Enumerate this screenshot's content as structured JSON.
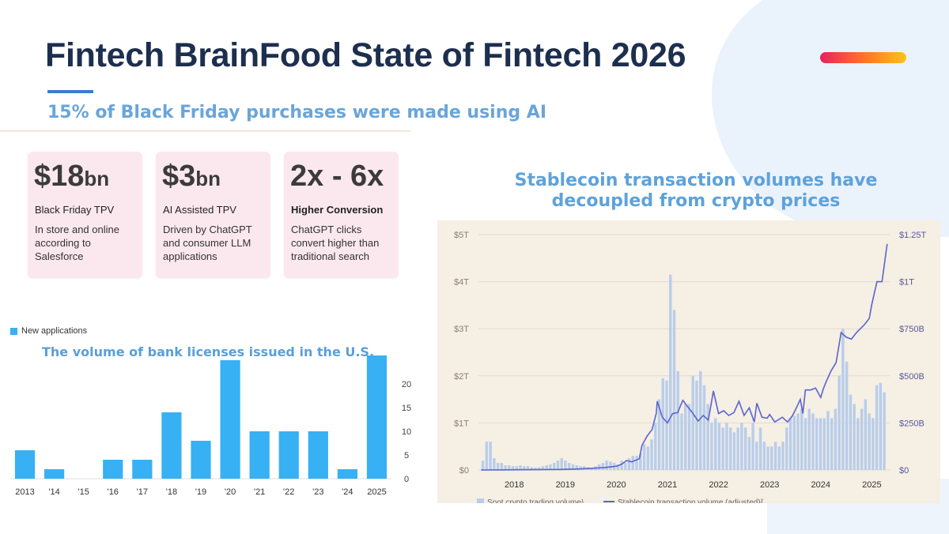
{
  "header": {
    "title": "Fintech BrainFood State of Fintech 2026",
    "subtitle": "15% of Black Friday purchases were made using AI"
  },
  "colors": {
    "title": "#1d2f4e",
    "accent_gradient": [
      "#e8215e",
      "#ff6a2b",
      "#ffc21a"
    ],
    "card_bg": "#fbe8ee",
    "bar_blue": "#37b0f4",
    "spot_bar": "#b9cdeb",
    "stable_line": "#5b63cf"
  },
  "stats": [
    {
      "value": "$18",
      "unit": "bn",
      "label": "Black Friday TPV",
      "bold_label": false,
      "desc_lines": [
        "In store and online",
        "according to",
        "Salesforce"
      ]
    },
    {
      "value": "$3",
      "unit": "bn",
      "label": "AI Assisted TPV",
      "bold_label": false,
      "desc_lines": [
        "Driven by ChatGPT",
        "and consumer LLM",
        "applications"
      ]
    },
    {
      "value": "2x - 6x",
      "unit": "",
      "label": "Higher Conversion",
      "bold_label": true,
      "desc_lines": [
        "ChatGPT clicks",
        "convert higher than",
        "traditional search"
      ]
    }
  ],
  "chart_data": [
    {
      "type": "bar",
      "title": "The volume of bank licenses issued in the U.S.",
      "legend": [
        "New applications"
      ],
      "legend_position": "top-left",
      "categories": [
        "2013",
        "'14",
        "'15",
        "'16",
        "'17",
        "'18",
        "'19",
        "'20",
        "'21",
        "'22",
        "'23",
        "'24",
        "2025"
      ],
      "values": [
        6,
        2,
        0,
        4,
        4,
        14,
        8,
        25,
        10,
        10,
        10,
        2,
        26
      ],
      "yticks": [
        "0",
        "5",
        "10",
        "15",
        "20"
      ],
      "ylim": [
        0,
        30
      ],
      "ytick_positions": [
        0,
        5,
        10,
        15,
        20
      ],
      "ylabel_position": "right"
    },
    {
      "type": "bar+line",
      "title": "Stablecoin transaction volumes have decoupled from crypto prices",
      "x_labels": [
        "2018",
        "2019",
        "2020",
        "2021",
        "2022",
        "2023",
        "2024",
        "2025"
      ],
      "x_range": [
        2017.8,
        2025.85
      ],
      "y_left_ticks": [
        "$0",
        "$1T",
        "$2T",
        "$3T",
        "$4T",
        "$5T"
      ],
      "y_left_range": [
        0,
        5
      ],
      "y_right_ticks": [
        "$0",
        "$250B",
        "$500B",
        "$750B",
        "$1T",
        "$1.25T"
      ],
      "y_right_range": [
        0,
        1.25
      ],
      "series": [
        {
          "name": "Spot crypto trading volume¹",
          "type": "bar",
          "axis": "left",
          "unit": "$T",
          "values": [
            0.2,
            0.6,
            0.6,
            0.25,
            0.15,
            0.15,
            0.1,
            0.1,
            0.08,
            0.08,
            0.1,
            0.08,
            0.08,
            0.06,
            0.05,
            0.06,
            0.08,
            0.1,
            0.12,
            0.15,
            0.2,
            0.25,
            0.2,
            0.15,
            0.12,
            0.1,
            0.08,
            0.08,
            0.06,
            0.05,
            0.08,
            0.12,
            0.15,
            0.2,
            0.18,
            0.15,
            0.12,
            0.2,
            0.15,
            0.25,
            0.3,
            0.3,
            0.35,
            0.55,
            0.5,
            0.65,
            1.0,
            1.5,
            1.95,
            1.9,
            4.15,
            3.4,
            2.1,
            1.2,
            1.4,
            1.4,
            2.0,
            1.9,
            2.1,
            1.8,
            1.4,
            1.0,
            1.1,
            1.0,
            0.9,
            1.0,
            0.9,
            0.8,
            0.9,
            1.0,
            0.9,
            0.7,
            1.0,
            0.6,
            0.9,
            0.6,
            0.5,
            0.5,
            0.6,
            0.5,
            0.6,
            0.9,
            1.1,
            1.15,
            1.2,
            1.3,
            1.1,
            1.3,
            1.2,
            1.1,
            1.1,
            1.1,
            1.25,
            1.1,
            1.3,
            2.0,
            3.0,
            2.3,
            1.6,
            1.4,
            1.1,
            1.3,
            1.5,
            1.2,
            1.1,
            1.8,
            1.85,
            1.65
          ]
        },
        {
          "name": "Stablecoin transaction volume (adjusted)²",
          "type": "line",
          "axis": "right",
          "unit": "$B",
          "points": [
            [
              2017.85,
              0
            ],
            [
              2019.4,
              3
            ],
            [
              2019.8,
              6
            ],
            [
              2020.1,
              10
            ],
            [
              2020.3,
              14
            ],
            [
              2020.5,
              20
            ],
            [
              2020.6,
              30
            ],
            [
              2020.7,
              50
            ],
            [
              2020.8,
              43
            ],
            [
              2020.95,
              60
            ],
            [
              2021.0,
              130
            ],
            [
              2021.1,
              180
            ],
            [
              2021.2,
              215
            ],
            [
              2021.28,
              300
            ],
            [
              2021.3,
              365
            ],
            [
              2021.4,
              280
            ],
            [
              2021.5,
              250
            ],
            [
              2021.6,
              300
            ],
            [
              2021.7,
              305
            ],
            [
              2021.8,
              370
            ],
            [
              2021.9,
              335
            ],
            [
              2022.0,
              300
            ],
            [
              2022.1,
              260
            ],
            [
              2022.2,
              290
            ],
            [
              2022.3,
              265
            ],
            [
              2022.4,
              420
            ],
            [
              2022.5,
              300
            ],
            [
              2022.6,
              315
            ],
            [
              2022.7,
              290
            ],
            [
              2022.8,
              305
            ],
            [
              2022.9,
              365
            ],
            [
              2023.0,
              290
            ],
            [
              2023.1,
              330
            ],
            [
              2023.2,
              255
            ],
            [
              2023.25,
              355
            ],
            [
              2023.35,
              280
            ],
            [
              2023.45,
              275
            ],
            [
              2023.5,
              295
            ],
            [
              2023.6,
              255
            ],
            [
              2023.75,
              280
            ],
            [
              2023.85,
              255
            ],
            [
              2023.95,
              290
            ],
            [
              2024.05,
              345
            ],
            [
              2024.1,
              375
            ],
            [
              2024.15,
              300
            ],
            [
              2024.2,
              425
            ],
            [
              2024.3,
              425
            ],
            [
              2024.4,
              435
            ],
            [
              2024.5,
              385
            ],
            [
              2024.55,
              430
            ],
            [
              2024.6,
              465
            ],
            [
              2024.7,
              525
            ],
            [
              2024.8,
              570
            ],
            [
              2024.9,
              730
            ],
            [
              2025.0,
              705
            ],
            [
              2025.1,
              695
            ],
            [
              2025.2,
              730
            ],
            [
              2025.35,
              770
            ],
            [
              2025.45,
              805
            ],
            [
              2025.5,
              880
            ],
            [
              2025.6,
              1000
            ],
            [
              2025.7,
              1000
            ],
            [
              2025.8,
              1200
            ]
          ]
        }
      ]
    }
  ]
}
